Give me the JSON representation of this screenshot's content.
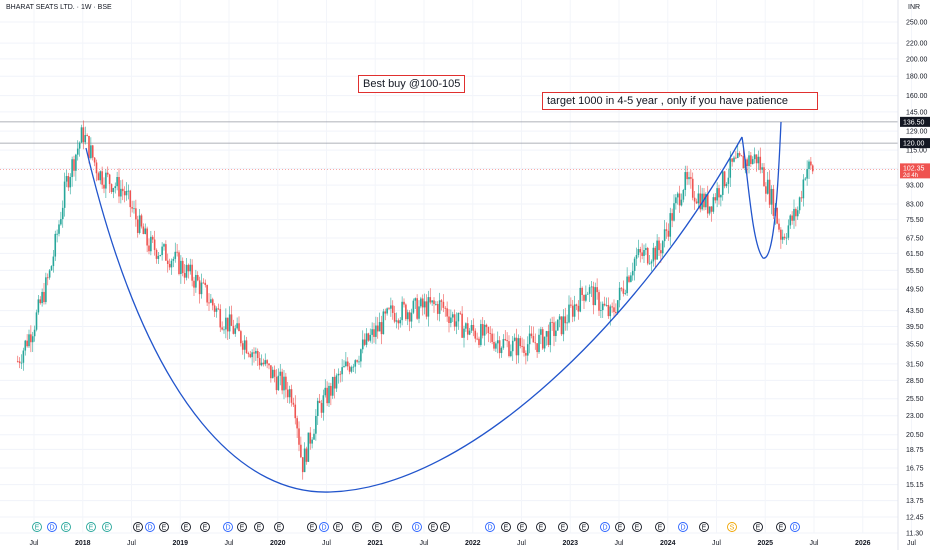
{
  "header": {
    "title": "BHARAT SEATS LTD. · 1W · BSE",
    "currency": "INR"
  },
  "annotations": {
    "buy": "Best buy @100-105",
    "target": "target 1000 in 4-5 year , only if you have patience"
  },
  "price_badges": {
    "level_high": "136.50",
    "level_mid": "120.00",
    "last_price": "102.35",
    "countdown": "2d 4h"
  },
  "colors": {
    "up": "#26a69a",
    "down": "#ef5350",
    "curve": "#2255cc",
    "badge_dark": "#131722",
    "badge_last": "#ef5350",
    "annot_border": "#e0302f",
    "event_earnings": "#26a69a",
    "event_other": "#131722",
    "event_split": "#f0a500"
  },
  "chart_data": {
    "type": "candlestick",
    "scale": "log",
    "title": "BHARAT SEATS LTD. · 1W · BSE",
    "y_axis_ticks": [
      "250.00",
      "220.00",
      "200.00",
      "180.00",
      "160.00",
      "145.00",
      "129.00",
      "115.00",
      "103.00",
      "93.00",
      "83.00",
      "75.50",
      "67.50",
      "61.50",
      "55.50",
      "49.50",
      "43.50",
      "39.50",
      "35.50",
      "31.50",
      "28.50",
      "25.50",
      "23.00",
      "20.50",
      "18.75",
      "16.75",
      "15.15",
      "13.75",
      "12.45",
      "11.30"
    ],
    "x_axis_ticks": [
      "Jul",
      "2018",
      "Jul",
      "2019",
      "Jul",
      "2020",
      "Jul",
      "2021",
      "Jul",
      "2022",
      "Jul",
      "2023",
      "Jul",
      "2024",
      "Jul",
      "2025",
      "Jul",
      "2026",
      "Jul"
    ],
    "horizontal_levels": [
      136.5,
      120.0
    ],
    "last_price": 102.35,
    "series_anchors": [
      [
        "2017-05",
        32
      ],
      [
        "2017-07",
        40
      ],
      [
        "2017-09",
        55
      ],
      [
        "2017-11",
        95
      ],
      [
        "2018-01",
        128
      ],
      [
        "2018-03",
        100
      ],
      [
        "2018-06",
        90
      ],
      [
        "2018-09",
        65
      ],
      [
        "2018-12",
        60
      ],
      [
        "2019-03",
        52
      ],
      [
        "2019-06",
        42
      ],
      [
        "2019-09",
        36
      ],
      [
        "2019-12",
        30
      ],
      [
        "2020-03",
        26
      ],
      [
        "2020-04",
        17
      ],
      [
        "2020-06",
        24
      ],
      [
        "2020-09",
        30
      ],
      [
        "2020-12",
        36
      ],
      [
        "2021-03",
        43
      ],
      [
        "2021-06",
        44
      ],
      [
        "2021-09",
        45
      ],
      [
        "2021-12",
        39
      ],
      [
        "2022-03",
        37
      ],
      [
        "2022-06",
        35
      ],
      [
        "2022-09",
        36
      ],
      [
        "2022-12",
        40
      ],
      [
        "2023-03",
        50
      ],
      [
        "2023-06",
        42
      ],
      [
        "2023-09",
        60
      ],
      [
        "2023-12",
        63
      ],
      [
        "2024-03",
        95
      ],
      [
        "2024-06",
        82
      ],
      [
        "2024-09",
        105
      ],
      [
        "2024-12",
        110
      ],
      [
        "2025-02",
        83
      ],
      [
        "2025-03",
        68
      ],
      [
        "2025-05",
        80
      ],
      [
        "2025-06",
        104
      ],
      [
        "2025-07",
        102
      ]
    ]
  },
  "events": [
    {
      "label": "E",
      "kind": "earnings"
    },
    {
      "label": "D",
      "kind": "dividend"
    },
    {
      "label": "E",
      "kind": "earnings"
    },
    {
      "label": "E",
      "kind": "earnings"
    },
    {
      "label": "E",
      "kind": "earnings"
    },
    {
      "label": "E",
      "kind": "other"
    },
    {
      "label": "D",
      "kind": "dividend"
    },
    {
      "label": "E",
      "kind": "other"
    },
    {
      "label": "E",
      "kind": "other"
    },
    {
      "label": "E",
      "kind": "other"
    },
    {
      "label": "D",
      "kind": "dividend"
    },
    {
      "label": "E",
      "kind": "other"
    },
    {
      "label": "E",
      "kind": "other"
    },
    {
      "label": "E",
      "kind": "other"
    },
    {
      "label": "E",
      "kind": "other"
    },
    {
      "label": "D",
      "kind": "dividend"
    },
    {
      "label": "E",
      "kind": "other"
    },
    {
      "label": "E",
      "kind": "other"
    },
    {
      "label": "E",
      "kind": "other"
    },
    {
      "label": "E",
      "kind": "other"
    },
    {
      "label": "D",
      "kind": "dividend"
    },
    {
      "label": "E",
      "kind": "other"
    },
    {
      "label": "E",
      "kind": "other"
    },
    {
      "label": "D",
      "kind": "dividend"
    },
    {
      "label": "E",
      "kind": "other"
    },
    {
      "label": "E",
      "kind": "other"
    },
    {
      "label": "E",
      "kind": "other"
    },
    {
      "label": "E",
      "kind": "other"
    },
    {
      "label": "E",
      "kind": "other"
    },
    {
      "label": "D",
      "kind": "dividend"
    },
    {
      "label": "E",
      "kind": "other"
    },
    {
      "label": "E",
      "kind": "other"
    },
    {
      "label": "E",
      "kind": "other"
    },
    {
      "label": "D",
      "kind": "dividend"
    },
    {
      "label": "E",
      "kind": "other"
    },
    {
      "label": "S",
      "kind": "split"
    },
    {
      "label": "E",
      "kind": "other"
    },
    {
      "label": "E",
      "kind": "other"
    },
    {
      "label": "D",
      "kind": "dividend"
    }
  ]
}
